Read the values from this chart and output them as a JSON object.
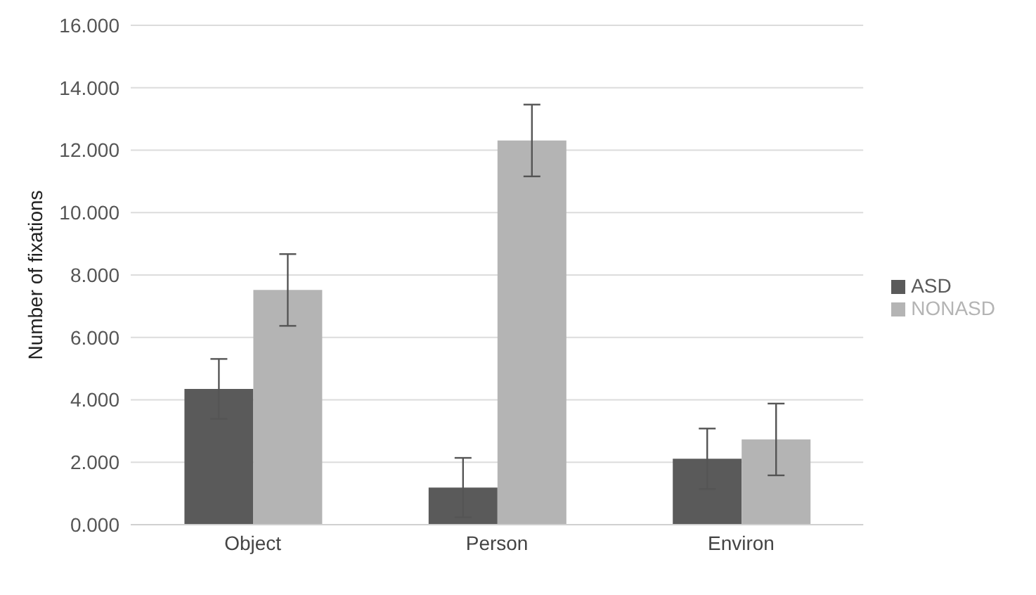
{
  "chart_data": {
    "type": "bar",
    "ylabel": "Number of fixations",
    "categories": [
      "Object",
      "Person",
      "Environ"
    ],
    "series": [
      {
        "name": "ASD",
        "color": "#5a5a5a",
        "values": [
          4.35,
          1.19,
          2.11
        ],
        "errors": [
          0.96,
          0.95,
          0.97
        ]
      },
      {
        "name": "NONASD",
        "color": "#b4b4b4",
        "values": [
          7.52,
          12.31,
          2.73
        ],
        "errors": [
          1.15,
          1.15,
          1.15
        ]
      }
    ],
    "ylim": [
      0,
      16
    ],
    "yticks": [
      {
        "value": 0,
        "label": "0.000"
      },
      {
        "value": 2,
        "label": "2.000"
      },
      {
        "value": 4,
        "label": "4.000"
      },
      {
        "value": 6,
        "label": "6.000"
      },
      {
        "value": 8,
        "label": "8.000"
      },
      {
        "value": 10,
        "label": "10.000"
      },
      {
        "value": 12,
        "label": "12.000"
      },
      {
        "value": 14,
        "label": "14.000"
      },
      {
        "value": 16,
        "label": "16.000"
      }
    ],
    "grid": "y",
    "legend": "right"
  }
}
